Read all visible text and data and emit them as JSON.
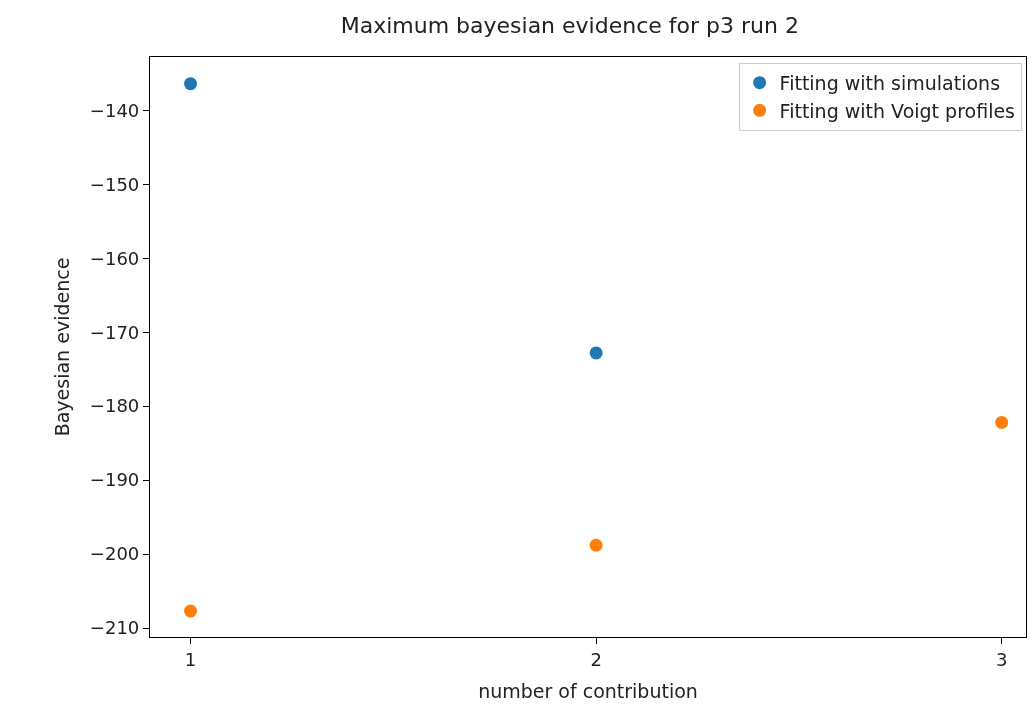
{
  "chart_data": {
    "type": "scatter",
    "title": "Maximum bayesian evidence for p3 run 2",
    "xlabel": "number of contribution",
    "ylabel": "Bayesian evidence",
    "series": [
      {
        "name": "Fitting with simulations",
        "color": "#1f77b4",
        "x": [
          1,
          2
        ],
        "values": [
          -136.4,
          -172.8
        ]
      },
      {
        "name": "Fitting with Voigt profiles",
        "color": "#ff7f0e",
        "x": [
          1,
          2,
          3
        ],
        "values": [
          -207.7,
          -198.8,
          -182.2
        ]
      }
    ],
    "xlim": [
      0.9,
      3.06
    ],
    "xticks": [
      1,
      2,
      3
    ],
    "ylim": [
      -211.2,
      -132.8
    ],
    "yticks": [
      -210,
      -200,
      -190,
      -180,
      -170,
      -160,
      -150,
      -140
    ],
    "legend": "top right"
  }
}
